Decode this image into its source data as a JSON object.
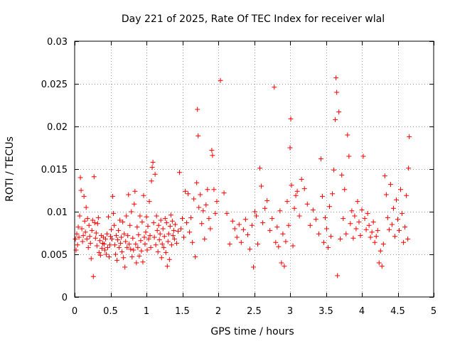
{
  "chart_data": {
    "type": "scatter",
    "title": "Day 221 of 2025, Rate Of TEC Index for receiver wlal",
    "xlabel": "GPS time / hours",
    "ylabel": "ROTI / TECUs",
    "xlim": [
      0,
      5
    ],
    "ylim": [
      0,
      0.03
    ],
    "xticks": [
      0,
      0.5,
      1,
      1.5,
      2,
      2.5,
      3,
      3.5,
      4,
      4.5,
      5
    ],
    "xtick_labels": [
      "0",
      "0.5",
      "1",
      "1.5",
      "2",
      "2.5",
      "3",
      "3.5",
      "4",
      "4.5",
      "5"
    ],
    "yticks": [
      0,
      0.005,
      0.01,
      0.015,
      0.02,
      0.025,
      0.03
    ],
    "ytick_labels": [
      "0",
      "0.005",
      "0.01",
      "0.015",
      "0.02",
      "0.025",
      "0.03"
    ],
    "grid": true,
    "marker": "+",
    "color": "#ff0000",
    "series": [
      {
        "name": "ROTI",
        "points": [
          [
            0.01,
            0.0068
          ],
          [
            0.02,
            0.0055
          ],
          [
            0.03,
            0.0074
          ],
          [
            0.04,
            0.0061
          ],
          [
            0.05,
            0.0082
          ],
          [
            0.06,
            0.007
          ],
          [
            0.07,
            0.0095
          ],
          [
            0.08,
            0.014
          ],
          [
            0.09,
            0.0125
          ],
          [
            0.1,
            0.008
          ],
          [
            0.11,
            0.0065
          ],
          [
            0.12,
            0.0072
          ],
          [
            0.13,
            0.0118
          ],
          [
            0.14,
            0.0089
          ],
          [
            0.15,
            0.0076
          ],
          [
            0.16,
            0.0105
          ],
          [
            0.17,
            0.0068
          ],
          [
            0.18,
            0.0092
          ],
          [
            0.19,
            0.0058
          ],
          [
            0.2,
            0.0084
          ],
          [
            0.21,
            0.0071
          ],
          [
            0.22,
            0.0063
          ],
          [
            0.23,
            0.0045
          ],
          [
            0.24,
            0.0078
          ],
          [
            0.25,
            0.009
          ],
          [
            0.26,
            0.0024
          ],
          [
            0.27,
            0.0141
          ],
          [
            0.28,
            0.0087
          ],
          [
            0.29,
            0.0069
          ],
          [
            0.3,
            0.0075
          ],
          [
            0.31,
            0.006
          ],
          [
            0.32,
            0.0086
          ],
          [
            0.33,
            0.0093
          ],
          [
            0.34,
            0.0052
          ],
          [
            0.35,
            0.0066
          ],
          [
            0.36,
            0.0049
          ],
          [
            0.37,
            0.0072
          ],
          [
            0.38,
            0.0057
          ],
          [
            0.39,
            0.0063
          ],
          [
            0.4,
            0.007
          ],
          [
            0.41,
            0.0062
          ],
          [
            0.42,
            0.0055
          ],
          [
            0.43,
            0.0068
          ],
          [
            0.44,
            0.005
          ],
          [
            0.45,
            0.0074
          ],
          [
            0.46,
            0.0058
          ],
          [
            0.47,
            0.0094
          ],
          [
            0.48,
            0.0047
          ],
          [
            0.49,
            0.0061
          ],
          [
            0.5,
            0.0071
          ],
          [
            0.51,
            0.0079
          ],
          [
            0.52,
            0.0068
          ],
          [
            0.53,
            0.0118
          ],
          [
            0.54,
            0.0098
          ],
          [
            0.55,
            0.0084
          ],
          [
            0.56,
            0.0061
          ],
          [
            0.57,
            0.005
          ],
          [
            0.58,
            0.0072
          ],
          [
            0.59,
            0.0043
          ],
          [
            0.6,
            0.0067
          ],
          [
            0.61,
            0.0078
          ],
          [
            0.62,
            0.0058
          ],
          [
            0.63,
            0.009
          ],
          [
            0.64,
            0.0063
          ],
          [
            0.65,
            0.007
          ],
          [
            0.66,
            0.0053
          ],
          [
            0.67,
            0.0088
          ],
          [
            0.68,
            0.0046
          ],
          [
            0.69,
            0.0074
          ],
          [
            0.7,
            0.0035
          ],
          [
            0.71,
            0.0065
          ],
          [
            0.72,
            0.0095
          ],
          [
            0.73,
            0.0058
          ],
          [
            0.74,
            0.0072
          ],
          [
            0.75,
            0.012
          ],
          [
            0.76,
            0.0062
          ],
          [
            0.77,
            0.0084
          ],
          [
            0.78,
            0.0056
          ],
          [
            0.79,
            0.01
          ],
          [
            0.8,
            0.0047
          ],
          [
            0.81,
            0.0069
          ],
          [
            0.82,
            0.0055
          ],
          [
            0.83,
            0.0109
          ],
          [
            0.84,
            0.0124
          ],
          [
            0.85,
            0.0062
          ],
          [
            0.86,
            0.004
          ],
          [
            0.87,
            0.0082
          ],
          [
            0.88,
            0.0058
          ],
          [
            0.89,
            0.0073
          ],
          [
            0.9,
            0.0048
          ],
          [
            0.91,
            0.0095
          ],
          [
            0.92,
            0.0066
          ],
          [
            0.93,
            0.0054
          ],
          [
            0.94,
            0.0088
          ],
          [
            0.95,
            0.0041
          ],
          [
            0.96,
            0.0119
          ],
          [
            0.97,
            0.007
          ],
          [
            0.98,
            0.0062
          ],
          [
            0.99,
            0.0076
          ],
          [
            1.0,
            0.0094
          ],
          [
            1.01,
            0.0055
          ],
          [
            1.02,
            0.0083
          ],
          [
            1.03,
            0.0068
          ],
          [
            1.04,
            0.0112
          ],
          [
            1.05,
            0.0072
          ],
          [
            1.06,
            0.0058
          ],
          [
            1.07,
            0.0136
          ],
          [
            1.08,
            0.0152
          ],
          [
            1.09,
            0.0158
          ],
          [
            1.1,
            0.0087
          ],
          [
            1.11,
            0.007
          ],
          [
            1.12,
            0.0144
          ],
          [
            1.13,
            0.0061
          ],
          [
            1.14,
            0.0095
          ],
          [
            1.15,
            0.0078
          ],
          [
            1.16,
            0.0053
          ],
          [
            1.17,
            0.0084
          ],
          [
            1.18,
            0.0067
          ],
          [
            1.19,
            0.0074
          ],
          [
            1.2,
            0.009
          ],
          [
            1.21,
            0.0046
          ],
          [
            1.22,
            0.0062
          ],
          [
            1.23,
            0.008
          ],
          [
            1.24,
            0.0058
          ],
          [
            1.25,
            0.0071
          ],
          [
            1.26,
            0.0092
          ],
          [
            1.27,
            0.0052
          ],
          [
            1.28,
            0.0087
          ],
          [
            1.29,
            0.0036
          ],
          [
            1.3,
            0.0065
          ],
          [
            1.31,
            0.0074
          ],
          [
            1.32,
            0.0044
          ],
          [
            1.33,
            0.0083
          ],
          [
            1.34,
            0.0096
          ],
          [
            1.35,
            0.0061
          ],
          [
            1.36,
            0.0089
          ],
          [
            1.37,
            0.0072
          ],
          [
            1.38,
            0.0078
          ],
          [
            1.39,
            0.0068
          ],
          [
            1.4,
            0.0085
          ],
          [
            1.42,
            0.0063
          ],
          [
            1.44,
            0.0077
          ],
          [
            1.46,
            0.0146
          ],
          [
            1.48,
            0.008
          ],
          [
            1.5,
            0.0092
          ],
          [
            1.52,
            0.007
          ],
          [
            1.54,
            0.0124
          ],
          [
            1.56,
            0.0087
          ],
          [
            1.58,
            0.0121
          ],
          [
            1.6,
            0.0076
          ],
          [
            1.62,
            0.0093
          ],
          [
            1.64,
            0.0064
          ],
          [
            1.66,
            0.0115
          ],
          [
            1.68,
            0.0047
          ],
          [
            1.7,
            0.0134
          ],
          [
            1.71,
            0.022
          ],
          [
            1.72,
            0.0189
          ],
          [
            1.73,
            0.0105
          ],
          [
            1.75,
            0.012
          ],
          [
            1.77,
            0.0086
          ],
          [
            1.79,
            0.0101
          ],
          [
            1.81,
            0.0068
          ],
          [
            1.83,
            0.0108
          ],
          [
            1.85,
            0.0126
          ],
          [
            1.87,
            0.0092
          ],
          [
            1.89,
            0.008
          ],
          [
            1.91,
            0.0172
          ],
          [
            1.92,
            0.0166
          ],
          [
            1.94,
            0.0126
          ],
          [
            1.96,
            0.0098
          ],
          [
            1.98,
            0.0112
          ],
          [
            2.03,
            0.0254
          ],
          [
            2.08,
            0.0122
          ],
          [
            2.12,
            0.0098
          ],
          [
            2.16,
            0.0062
          ],
          [
            2.2,
            0.0089
          ],
          [
            2.23,
            0.008
          ],
          [
            2.26,
            0.007
          ],
          [
            2.29,
            0.0085
          ],
          [
            2.32,
            0.0064
          ],
          [
            2.35,
            0.0079
          ],
          [
            2.38,
            0.0091
          ],
          [
            2.41,
            0.0073
          ],
          [
            2.44,
            0.0056
          ],
          [
            2.47,
            0.0084
          ],
          [
            2.49,
            0.0035
          ],
          [
            2.51,
            0.01
          ],
          [
            2.53,
            0.0095
          ],
          [
            2.55,
            0.0062
          ],
          [
            2.58,
            0.0151
          ],
          [
            2.6,
            0.013
          ],
          [
            2.62,
            0.0087
          ],
          [
            2.65,
            0.0104
          ],
          [
            2.68,
            0.0113
          ],
          [
            2.72,
            0.0078
          ],
          [
            2.75,
            0.0092
          ],
          [
            2.78,
            0.0246
          ],
          [
            2.8,
            0.0064
          ],
          [
            2.82,
            0.0082
          ],
          [
            2.84,
            0.0059
          ],
          [
            2.86,
            0.0101
          ],
          [
            2.88,
            0.004
          ],
          [
            2.9,
            0.0074
          ],
          [
            2.92,
            0.0036
          ],
          [
            2.94,
            0.0065
          ],
          [
            2.96,
            0.0112
          ],
          [
            2.98,
            0.0084
          ],
          [
            3.0,
            0.0175
          ],
          [
            3.01,
            0.0209
          ],
          [
            3.02,
            0.0131
          ],
          [
            3.04,
            0.006
          ],
          [
            3.06,
            0.0104
          ],
          [
            3.08,
            0.0119
          ],
          [
            3.1,
            0.0124
          ],
          [
            3.13,
            0.0095
          ],
          [
            3.16,
            0.0138
          ],
          [
            3.2,
            0.0127
          ],
          [
            3.24,
            0.0109
          ],
          [
            3.28,
            0.0084
          ],
          [
            3.32,
            0.0102
          ],
          [
            3.36,
            0.0091
          ],
          [
            3.4,
            0.0074
          ],
          [
            3.43,
            0.0162
          ],
          [
            3.45,
            0.0118
          ],
          [
            3.47,
            0.0064
          ],
          [
            3.49,
            0.0093
          ],
          [
            3.51,
            0.008
          ],
          [
            3.53,
            0.0058
          ],
          [
            3.55,
            0.0106
          ],
          [
            3.57,
            0.0071
          ],
          [
            3.59,
            0.0121
          ],
          [
            3.61,
            0.0149
          ],
          [
            3.63,
            0.0208
          ],
          [
            3.64,
            0.0257
          ],
          [
            3.65,
            0.024
          ],
          [
            3.66,
            0.0025
          ],
          [
            3.68,
            0.0217
          ],
          [
            3.7,
            0.0068
          ],
          [
            3.72,
            0.0143
          ],
          [
            3.74,
            0.0092
          ],
          [
            3.76,
            0.0126
          ],
          [
            3.78,
            0.0074
          ],
          [
            3.8,
            0.019
          ],
          [
            3.82,
            0.0165
          ],
          [
            3.84,
            0.0086
          ],
          [
            3.86,
            0.0101
          ],
          [
            3.88,
            0.0069
          ],
          [
            3.9,
            0.0095
          ],
          [
            3.92,
            0.008
          ],
          [
            3.94,
            0.0112
          ],
          [
            3.96,
            0.0088
          ],
          [
            3.98,
            0.0072
          ],
          [
            4.0,
            0.0102
          ],
          [
            4.02,
            0.0165
          ],
          [
            4.04,
            0.0092
          ],
          [
            4.06,
            0.0079
          ],
          [
            4.08,
            0.0098
          ],
          [
            4.1,
            0.0084
          ],
          [
            4.12,
            0.007
          ],
          [
            4.14,
            0.0076
          ],
          [
            4.16,
            0.0088
          ],
          [
            4.18,
            0.0064
          ],
          [
            4.2,
            0.0071
          ],
          [
            4.22,
            0.0078
          ],
          [
            4.24,
            0.004
          ],
          [
            4.26,
            0.0054
          ],
          [
            4.28,
            0.0036
          ],
          [
            4.3,
            0.0062
          ],
          [
            4.32,
            0.0142
          ],
          [
            4.34,
            0.012
          ],
          [
            4.36,
            0.0093
          ],
          [
            4.38,
            0.0079
          ],
          [
            4.4,
            0.0132
          ],
          [
            4.42,
            0.0085
          ],
          [
            4.44,
            0.0104
          ],
          [
            4.46,
            0.0071
          ],
          [
            4.48,
            0.0114
          ],
          [
            4.5,
            0.0091
          ],
          [
            4.52,
            0.0078
          ],
          [
            4.54,
            0.0126
          ],
          [
            4.56,
            0.0098
          ],
          [
            4.58,
            0.0064
          ],
          [
            4.6,
            0.0082
          ],
          [
            4.62,
            0.0119
          ],
          [
            4.64,
            0.0068
          ],
          [
            4.65,
            0.0151
          ],
          [
            4.66,
            0.0188
          ]
        ]
      }
    ]
  }
}
